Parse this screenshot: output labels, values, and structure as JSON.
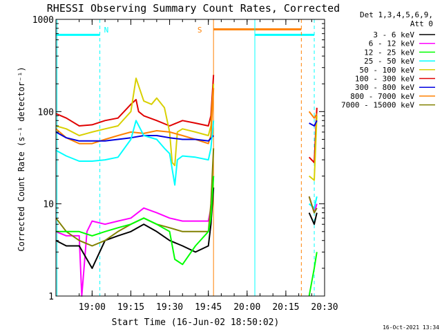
{
  "chart_data": {
    "type": "line",
    "title": "RHESSI Observing Summary Count Rates, Corrected",
    "xlabel": "Start Time (16-Jun-02 18:50:02)",
    "ylabel": "Corrected Count Rate (s⁻¹ detector⁻¹)",
    "yscale": "log",
    "ylim": [
      1,
      1000
    ],
    "xlim_minutes": [
      -4,
      100
    ],
    "x_ticks": [
      {
        "label": "19:00",
        "minute": 10
      },
      {
        "label": "19:15",
        "minute": 25
      },
      {
        "label": "19:30",
        "minute": 40
      },
      {
        "label": "19:45",
        "minute": 55
      },
      {
        "label": "20:00",
        "minute": 70
      },
      {
        "label": "20:15",
        "minute": 85
      },
      {
        "label": "20:30",
        "minute": 100
      }
    ],
    "y_ticks": [
      {
        "label": "1",
        "value": 1
      },
      {
        "label": "10",
        "value": 10
      },
      {
        "label": "100",
        "value": 100
      },
      {
        "label": "1000",
        "value": 1000
      }
    ],
    "legend": {
      "placement": "top-right-outside",
      "header": [
        "Det 1,3,4,5,6,9,",
        "Att 0"
      ],
      "entries": [
        {
          "name": "3 - 6 keV",
          "color": "#000000"
        },
        {
          "name": "6 - 12 keV",
          "color": "#ff00ff"
        },
        {
          "name": "12 - 25 keV",
          "color": "#00ff00"
        },
        {
          "name": "25 - 50 keV",
          "color": "#00ffff"
        },
        {
          "name": "50 - 100 keV",
          "color": "#d8d000"
        },
        {
          "name": "100 - 300 keV",
          "color": "#e00000"
        },
        {
          "name": "300 - 800 keV",
          "color": "#0000e0"
        },
        {
          "name": "800 - 7000 keV",
          "color": "#ff8000"
        },
        {
          "name": "7000 - 15000 keV",
          "color": "#808000"
        }
      ]
    },
    "annotations": [
      {
        "label": "N",
        "color": "#00ffff",
        "x_minute": 13
      },
      {
        "label": "S",
        "color": "#ff8000",
        "x_minute": 54.5
      }
    ],
    "flag_bars": [
      {
        "color": "#00ffff",
        "x_start": -4,
        "x_end": 13,
        "value": 680
      },
      {
        "color": "#00ffff",
        "x_start": 73,
        "x_end": 96,
        "value": 680
      },
      {
        "color": "#ff8000",
        "x_start": 57,
        "x_end": 91,
        "value": 780
      }
    ],
    "event_lines": [
      {
        "color": "#00ffff",
        "style": "solid",
        "x_minute": -3.6
      },
      {
        "color": "#00ffff",
        "style": "dashed",
        "x_minute": 13
      },
      {
        "color": "#ff8000",
        "style": "solid",
        "x_minute": 57
      },
      {
        "color": "#00ffff",
        "style": "solid",
        "x_minute": 73
      },
      {
        "color": "#ff8000",
        "style": "dashed",
        "x_minute": 91
      },
      {
        "color": "#00ffff",
        "style": "dashed",
        "x_minute": 96
      }
    ],
    "series": [
      {
        "name": "100 - 300 keV",
        "color": "#e00000",
        "x": [
          -4,
          0,
          5,
          10,
          15,
          20,
          25,
          27,
          28,
          30,
          35,
          40,
          45,
          50,
          55,
          56,
          57,
          92,
          94,
          96,
          97
        ],
        "y": [
          95,
          85,
          70,
          72,
          80,
          85,
          120,
          135,
          100,
          90,
          80,
          70,
          80,
          75,
          70,
          90,
          250,
          null,
          32,
          28,
          110
        ]
      },
      {
        "name": "50 - 100 keV",
        "color": "#d8d000",
        "x": [
          -4,
          0,
          5,
          10,
          15,
          20,
          25,
          27,
          30,
          33,
          35,
          38,
          40,
          41,
          42,
          43,
          45,
          50,
          55,
          56,
          57,
          92,
          94,
          96,
          97
        ],
        "y": [
          70,
          65,
          55,
          60,
          65,
          70,
          100,
          230,
          130,
          120,
          140,
          110,
          60,
          28,
          26,
          60,
          65,
          60,
          55,
          70,
          200,
          null,
          20,
          18,
          90
        ]
      },
      {
        "name": "800 - 7000 keV",
        "color": "#ff8000",
        "x": [
          -4,
          0,
          5,
          10,
          15,
          20,
          25,
          30,
          35,
          40,
          45,
          50,
          55,
          56,
          57,
          92,
          94,
          96,
          97
        ],
        "y": [
          65,
          52,
          45,
          45,
          50,
          55,
          60,
          58,
          62,
          60,
          55,
          50,
          45,
          55,
          180,
          null,
          100,
          85,
          95
        ]
      },
      {
        "name": "300 - 800 keV",
        "color": "#0000e0",
        "x": [
          -4,
          0,
          5,
          10,
          15,
          20,
          25,
          30,
          35,
          40,
          45,
          50,
          55,
          57,
          92,
          94,
          96,
          97
        ],
        "y": [
          60,
          52,
          48,
          48,
          48,
          50,
          52,
          55,
          55,
          52,
          50,
          50,
          48,
          55,
          null,
          75,
          70,
          80
        ]
      },
      {
        "name": "25 - 50 keV",
        "color": "#00ffff",
        "x": [
          -4,
          0,
          5,
          10,
          15,
          20,
          25,
          27,
          30,
          35,
          38,
          40,
          42,
          43,
          45,
          50,
          55,
          56,
          57,
          92,
          94,
          96,
          97
        ],
        "y": [
          38,
          33,
          29,
          29,
          30,
          32,
          50,
          80,
          55,
          50,
          40,
          35,
          16,
          30,
          33,
          32,
          30,
          40,
          80,
          null,
          10,
          9,
          12
        ]
      },
      {
        "name": "6 - 12 keV",
        "color": "#ff00ff",
        "x": [
          -4,
          0,
          5,
          6,
          8,
          10,
          15,
          20,
          25,
          30,
          35,
          40,
          45,
          50,
          55,
          56,
          57,
          92,
          94,
          96,
          97
        ],
        "y": [
          5,
          4.5,
          4.5,
          1,
          5,
          6.5,
          6,
          6.5,
          7,
          9,
          8,
          7,
          6.5,
          6.5,
          6.5,
          9,
          20,
          null,
          12,
          8,
          10
        ]
      },
      {
        "name": "3 - 6 keV",
        "color": "#000000",
        "x": [
          -4,
          0,
          5,
          10,
          15,
          20,
          25,
          30,
          35,
          40,
          45,
          50,
          55,
          56,
          57,
          92,
          94,
          96,
          97
        ],
        "y": [
          4,
          3.5,
          3.5,
          2,
          4,
          4.5,
          5,
          6,
          5,
          4,
          3.5,
          3,
          3.5,
          6,
          15,
          null,
          8,
          6,
          8
        ]
      },
      {
        "name": "7000 - 15000 keV",
        "color": "#808000",
        "x": [
          -4,
          0,
          5,
          10,
          15,
          20,
          25,
          30,
          35,
          40,
          45,
          50,
          55,
          56,
          57,
          92,
          94,
          96,
          97
        ],
        "y": [
          7,
          5,
          4,
          3.5,
          4,
          5,
          6,
          7,
          6,
          5.5,
          5,
          5,
          5,
          10,
          40,
          null,
          12,
          8,
          9
        ]
      },
      {
        "name": "12 - 25 keV",
        "color": "#00ff00",
        "x": [
          -4,
          0,
          5,
          10,
          15,
          20,
          25,
          30,
          35,
          40,
          42,
          45,
          50,
          55,
          56,
          57,
          92,
          94,
          96,
          97
        ],
        "y": [
          5,
          5,
          5,
          4.5,
          5,
          5.5,
          6,
          7,
          6,
          5,
          2.5,
          2.2,
          3.5,
          5,
          7,
          20,
          null,
          1,
          2,
          3
        ]
      }
    ]
  },
  "footer_date": "16-Oct-2021 13:34"
}
